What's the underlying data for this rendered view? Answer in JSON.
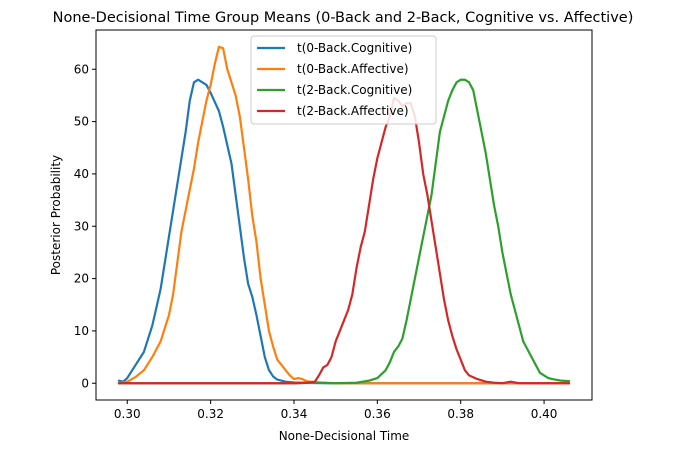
{
  "chart_data": {
    "type": "line",
    "title": "None-Decisional Time Group Means (0-Back and 2-Back, Cognitive vs. Affective)",
    "xlabel": "None-Decisional Time",
    "ylabel": "Posterior Probability",
    "xlim": [
      0.2925,
      0.4115
    ],
    "ylim": [
      -3.2,
      67.5
    ],
    "xticks": [
      0.3,
      0.32,
      0.34,
      0.36,
      0.38,
      0.4
    ],
    "xtick_labels": [
      "0.30",
      "0.32",
      "0.34",
      "0.36",
      "0.38",
      "0.40"
    ],
    "yticks": [
      0,
      10,
      20,
      30,
      40,
      50,
      60
    ],
    "ytick_labels": [
      "0",
      "10",
      "20",
      "30",
      "40",
      "50",
      "60"
    ],
    "grid": false,
    "legend": {
      "position": "upper-center"
    },
    "series": [
      {
        "name": "t(0-Back.Cognitive)",
        "color": "#1f77b4",
        "points": [
          [
            0.298,
            0.5
          ],
          [
            0.299,
            0.3
          ],
          [
            0.3,
            1.0
          ],
          [
            0.302,
            3.5
          ],
          [
            0.304,
            6.0
          ],
          [
            0.306,
            11.0
          ],
          [
            0.308,
            18.0
          ],
          [
            0.31,
            28.0
          ],
          [
            0.312,
            38.0
          ],
          [
            0.314,
            48.0
          ],
          [
            0.315,
            54.0
          ],
          [
            0.316,
            57.5
          ],
          [
            0.317,
            58.0
          ],
          [
            0.318,
            57.5
          ],
          [
            0.319,
            57.0
          ],
          [
            0.32,
            55.5
          ],
          [
            0.322,
            52.0
          ],
          [
            0.323,
            49.0
          ],
          [
            0.325,
            42.0
          ],
          [
            0.326,
            36.0
          ],
          [
            0.327,
            30.0
          ],
          [
            0.328,
            24.0
          ],
          [
            0.329,
            19.0
          ],
          [
            0.33,
            16.5
          ],
          [
            0.331,
            13.0
          ],
          [
            0.332,
            9.0
          ],
          [
            0.333,
            5.0
          ],
          [
            0.334,
            2.5
          ],
          [
            0.335,
            1.3
          ],
          [
            0.336,
            0.7
          ],
          [
            0.338,
            0.3
          ],
          [
            0.34,
            0.15
          ],
          [
            0.344,
            0.05
          ],
          [
            0.35,
            0.0
          ],
          [
            0.36,
            0.0
          ],
          [
            0.37,
            0.0
          ],
          [
            0.38,
            0.0
          ],
          [
            0.39,
            0.0
          ],
          [
            0.4,
            0.0
          ],
          [
            0.406,
            0.0
          ]
        ]
      },
      {
        "name": "t(0-Back.Affective)",
        "color": "#ff7f0e",
        "points": [
          [
            0.298,
            0.0
          ],
          [
            0.3,
            0.3
          ],
          [
            0.302,
            1.2
          ],
          [
            0.304,
            2.5
          ],
          [
            0.306,
            5.0
          ],
          [
            0.308,
            8.0
          ],
          [
            0.31,
            13.0
          ],
          [
            0.311,
            17.0
          ],
          [
            0.312,
            23.0
          ],
          [
            0.313,
            29.0
          ],
          [
            0.314,
            33.0
          ],
          [
            0.315,
            37.0
          ],
          [
            0.316,
            41.0
          ],
          [
            0.317,
            46.0
          ],
          [
            0.318,
            50.0
          ],
          [
            0.319,
            54.0
          ],
          [
            0.32,
            57.0
          ],
          [
            0.321,
            61.0
          ],
          [
            0.322,
            64.3
          ],
          [
            0.323,
            64.0
          ],
          [
            0.324,
            60.0
          ],
          [
            0.325,
            57.5
          ],
          [
            0.326,
            55.0
          ],
          [
            0.327,
            51.0
          ],
          [
            0.328,
            45.0
          ],
          [
            0.329,
            39.0
          ],
          [
            0.33,
            32.0
          ],
          [
            0.331,
            27.0
          ],
          [
            0.332,
            20.0
          ],
          [
            0.333,
            15.0
          ],
          [
            0.334,
            10.0
          ],
          [
            0.335,
            7.0
          ],
          [
            0.336,
            4.5
          ],
          [
            0.337,
            3.5
          ],
          [
            0.338,
            2.5
          ],
          [
            0.339,
            1.5
          ],
          [
            0.34,
            0.8
          ],
          [
            0.341,
            1.0
          ],
          [
            0.342,
            0.8
          ],
          [
            0.343,
            0.4
          ],
          [
            0.345,
            0.2
          ],
          [
            0.35,
            0.0
          ],
          [
            0.36,
            0.0
          ],
          [
            0.37,
            0.0
          ],
          [
            0.38,
            0.0
          ],
          [
            0.39,
            0.0
          ],
          [
            0.4,
            0.0
          ],
          [
            0.406,
            0.0
          ]
        ]
      },
      {
        "name": "t(2-Back.Cognitive)",
        "color": "#2ca02c",
        "points": [
          [
            0.298,
            0.0
          ],
          [
            0.32,
            0.0
          ],
          [
            0.34,
            0.0
          ],
          [
            0.345,
            0.1
          ],
          [
            0.35,
            0.0
          ],
          [
            0.355,
            0.1
          ],
          [
            0.358,
            0.5
          ],
          [
            0.36,
            1.0
          ],
          [
            0.362,
            2.5
          ],
          [
            0.363,
            4.0
          ],
          [
            0.364,
            6.0
          ],
          [
            0.365,
            7.0
          ],
          [
            0.366,
            8.5
          ],
          [
            0.367,
            12.0
          ],
          [
            0.368,
            16.0
          ],
          [
            0.369,
            20.0
          ],
          [
            0.37,
            24.0
          ],
          [
            0.371,
            28.0
          ],
          [
            0.372,
            32.0
          ],
          [
            0.373,
            36.0
          ],
          [
            0.374,
            42.0
          ],
          [
            0.375,
            48.0
          ],
          [
            0.376,
            51.0
          ],
          [
            0.377,
            54.0
          ],
          [
            0.378,
            56.0
          ],
          [
            0.379,
            57.5
          ],
          [
            0.38,
            58.0
          ],
          [
            0.381,
            58.0
          ],
          [
            0.382,
            57.5
          ],
          [
            0.383,
            56.0
          ],
          [
            0.384,
            52.0
          ],
          [
            0.385,
            48.0
          ],
          [
            0.386,
            44.0
          ],
          [
            0.387,
            39.0
          ],
          [
            0.388,
            34.0
          ],
          [
            0.389,
            30.0
          ],
          [
            0.39,
            25.0
          ],
          [
            0.391,
            21.0
          ],
          [
            0.392,
            17.0
          ],
          [
            0.393,
            14.0
          ],
          [
            0.394,
            11.0
          ],
          [
            0.395,
            8.0
          ],
          [
            0.396,
            6.5
          ],
          [
            0.397,
            5.0
          ],
          [
            0.398,
            3.5
          ],
          [
            0.399,
            2.0
          ],
          [
            0.4,
            1.5
          ],
          [
            0.401,
            1.0
          ],
          [
            0.402,
            0.8
          ],
          [
            0.404,
            0.5
          ],
          [
            0.406,
            0.4
          ]
        ]
      },
      {
        "name": "t(2-Back.Affective)",
        "color": "#d62728",
        "points": [
          [
            0.298,
            0.0
          ],
          [
            0.31,
            0.0
          ],
          [
            0.32,
            0.0
          ],
          [
            0.33,
            0.0
          ],
          [
            0.34,
            0.0
          ],
          [
            0.343,
            0.1
          ],
          [
            0.345,
            0.3
          ],
          [
            0.346,
            1.5
          ],
          [
            0.347,
            3.0
          ],
          [
            0.348,
            3.5
          ],
          [
            0.349,
            5.0
          ],
          [
            0.35,
            8.0
          ],
          [
            0.351,
            10.0
          ],
          [
            0.352,
            12.0
          ],
          [
            0.353,
            14.0
          ],
          [
            0.354,
            17.0
          ],
          [
            0.355,
            22.0
          ],
          [
            0.356,
            26.0
          ],
          [
            0.357,
            29.0
          ],
          [
            0.358,
            34.0
          ],
          [
            0.359,
            39.0
          ],
          [
            0.36,
            43.0
          ],
          [
            0.361,
            46.0
          ],
          [
            0.362,
            49.0
          ],
          [
            0.363,
            51.0
          ],
          [
            0.364,
            54.5
          ],
          [
            0.365,
            54.0
          ],
          [
            0.366,
            53.0
          ],
          [
            0.367,
            53.5
          ],
          [
            0.368,
            53.5
          ],
          [
            0.369,
            51.0
          ],
          [
            0.37,
            46.0
          ],
          [
            0.371,
            40.0
          ],
          [
            0.372,
            36.0
          ],
          [
            0.373,
            31.0
          ],
          [
            0.374,
            26.0
          ],
          [
            0.375,
            21.0
          ],
          [
            0.376,
            16.0
          ],
          [
            0.377,
            12.0
          ],
          [
            0.378,
            9.0
          ],
          [
            0.379,
            6.5
          ],
          [
            0.38,
            4.5
          ],
          [
            0.381,
            2.5
          ],
          [
            0.382,
            1.5
          ],
          [
            0.384,
            0.8
          ],
          [
            0.386,
            0.3
          ],
          [
            0.388,
            0.1
          ],
          [
            0.39,
            0.0
          ],
          [
            0.392,
            0.3
          ],
          [
            0.394,
            0.0
          ],
          [
            0.396,
            0.0
          ],
          [
            0.4,
            0.0
          ],
          [
            0.406,
            0.0
          ]
        ]
      }
    ]
  }
}
